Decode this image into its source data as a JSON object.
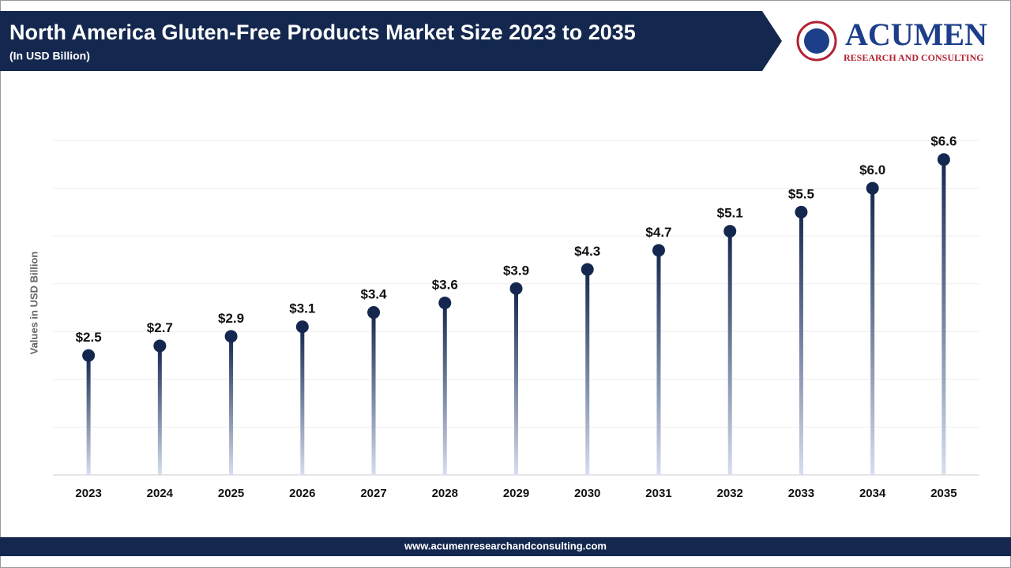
{
  "chart_data": {
    "type": "lollipop",
    "title": "North America Gluten-Free Products Market Size 2023 to 2035",
    "subtitle": "(In USD Billion)",
    "y_label": "Values in USD Billion",
    "categories": [
      "2023",
      "2024",
      "2025",
      "2026",
      "2027",
      "2028",
      "2029",
      "2030",
      "2031",
      "2032",
      "2033",
      "2034",
      "2035"
    ],
    "values": [
      2.5,
      2.7,
      2.9,
      3.1,
      3.4,
      3.6,
      3.9,
      4.3,
      4.7,
      5.1,
      5.5,
      6.0,
      6.6
    ],
    "value_labels": [
      "$2.5",
      "$2.7",
      "$2.9",
      "$3.1",
      "$3.4",
      "$3.6",
      "$3.9",
      "$4.3",
      "$4.7",
      "$5.1",
      "$5.5",
      "$6.0",
      "$6.6"
    ],
    "color": "#14284f",
    "ylim": [
      0,
      7
    ],
    "yticks": [
      0,
      1,
      2,
      3,
      4,
      5,
      6,
      7
    ],
    "grid": true
  },
  "logo": {
    "name": "ACUMEN",
    "tagline": "RESEARCH AND CONSULTING"
  },
  "footer": {
    "url": "www.acumenresearchandconsulting.com"
  }
}
